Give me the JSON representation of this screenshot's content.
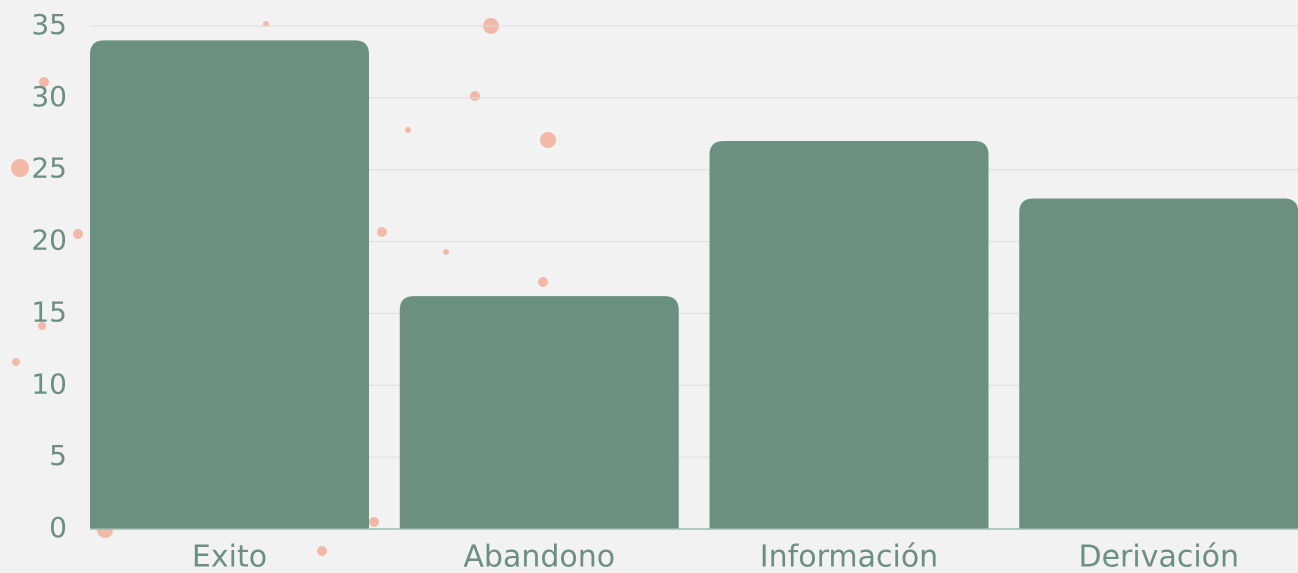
{
  "chart_data": {
    "type": "bar",
    "categories": [
      "Exito",
      "Abandono",
      "Información",
      "Derivación"
    ],
    "values": [
      34,
      16.2,
      27,
      23
    ],
    "color": "#6b9080",
    "ylim": [
      0,
      35
    ],
    "yticks": [
      0,
      5,
      10,
      15,
      20,
      25,
      30,
      35
    ],
    "grid": true
  }
}
